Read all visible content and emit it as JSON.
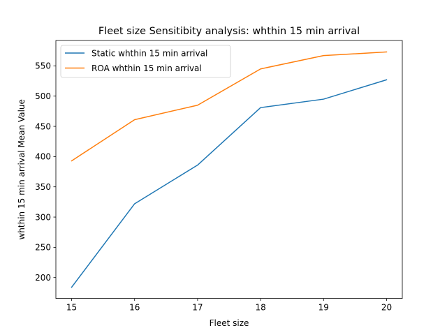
{
  "chart_data": {
    "type": "line",
    "title": "Fleet size Sensitibity analysis: whthin 15 min arrival",
    "xlabel": "Fleet size",
    "ylabel": "whthin 15 min arrival Mean Value",
    "x": [
      15,
      16,
      17,
      18,
      19,
      20
    ],
    "xticks": [
      15,
      16,
      17,
      18,
      19,
      20
    ],
    "yticks": [
      200,
      250,
      300,
      350,
      400,
      450,
      500,
      550
    ],
    "xlim": [
      14.75,
      20.25
    ],
    "ylim": [
      165.5,
      592.0
    ],
    "grid": false,
    "legend_position": "upper-left",
    "series": [
      {
        "name": "Static whthin 15 min arrival",
        "color": "#1f77b4",
        "values": [
          184,
          322,
          386,
          481,
          495,
          527
        ]
      },
      {
        "name": "ROA whthin 15 min arrival",
        "color": "#ff7f0e",
        "values": [
          393,
          461,
          485,
          545,
          567,
          573
        ]
      }
    ]
  }
}
